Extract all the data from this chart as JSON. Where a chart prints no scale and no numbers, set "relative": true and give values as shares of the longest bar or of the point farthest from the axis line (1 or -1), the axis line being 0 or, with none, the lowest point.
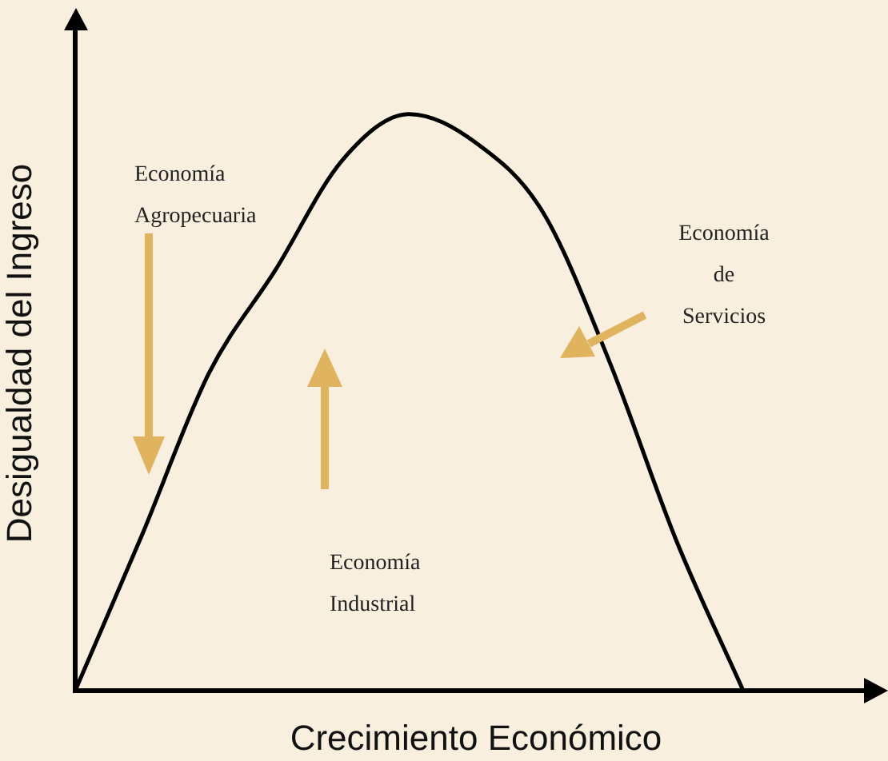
{
  "chart_data": {
    "type": "line",
    "relative": true,
    "xlabel": "Crecimiento Económico",
    "ylabel": "Desigualdad del Ingreso",
    "categories": [
      null,
      null,
      null,
      null,
      null,
      null,
      null,
      null,
      null,
      null,
      null,
      null,
      null
    ],
    "values": [
      0,
      0.27,
      0.55,
      0.73,
      0.92,
      1,
      0.95,
      0.83,
      0.57,
      0.26,
      0,
      null,
      null
    ],
    "color": "#000000",
    "marker": "none",
    "grid": false,
    "legend": false,
    "annotations": [
      "Economía\nAgropecuaria",
      "Economía\nIndustrial",
      "Economía\nde\nServicios"
    ]
  }
}
